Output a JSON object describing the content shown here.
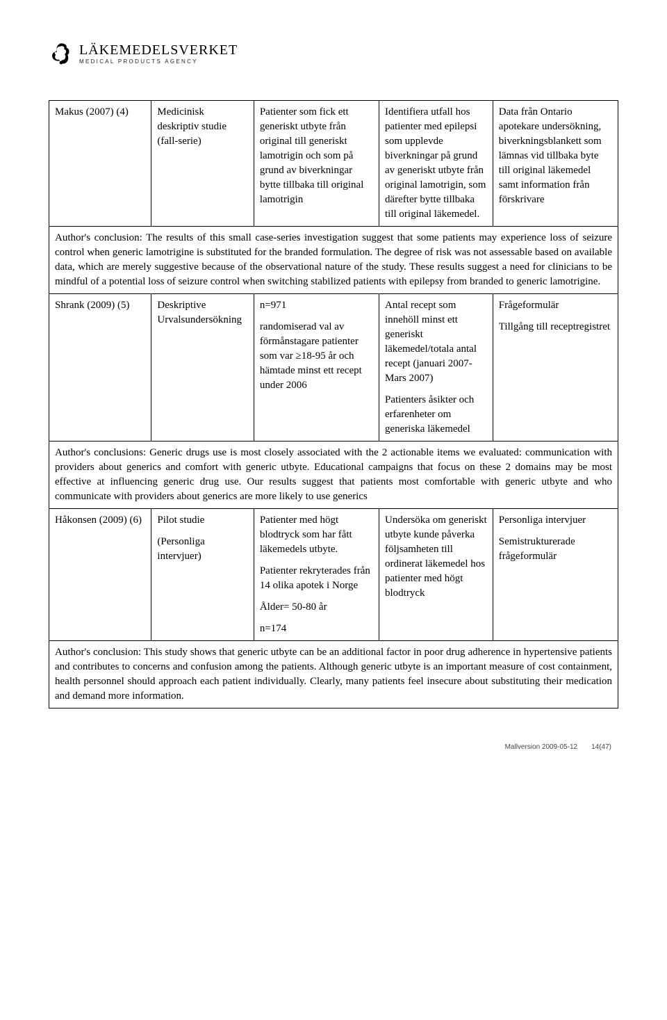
{
  "logo": {
    "main": "LÄKEMEDELSVERKET",
    "sub": "MEDICAL PRODUCTS AGENCY"
  },
  "colors": {
    "text": "#000000",
    "background": "#ffffff",
    "border": "#000000",
    "footer_text": "#444444"
  },
  "typography": {
    "body_font": "Times New Roman",
    "body_size_pt": 11,
    "logo_font": "Georgia",
    "footer_font": "Arial"
  },
  "table": {
    "column_widths_pct": [
      18,
      18,
      22,
      20,
      22
    ],
    "rows": [
      {
        "type": "data",
        "cells": [
          [
            "Makus (2007) (4)"
          ],
          [
            "Medicinisk deskriptiv studie (fall-serie)"
          ],
          [
            "Patienter som fick ett generiskt utbyte från original till generiskt lamotrigin och som på grund av biverkningar bytte tillbaka till original lamotrigin"
          ],
          [
            "Identifiera utfall hos patienter med epilepsi som upplevde biverkningar på grund av generiskt utbyte från original lamotrigin, som därefter bytte tillbaka till original läkemedel."
          ],
          [
            "Data från Ontario apotekare undersökning, biverkningsblankett som lämnas vid tillbaka byte till original läkemedel samt information från förskrivare"
          ]
        ]
      },
      {
        "type": "conclusion",
        "text": "Author's conclusion: The results of this small case-series investigation suggest that some patients may experience loss of seizure control when generic lamotrigine is substituted for the branded formulation. The degree of risk was not assessable based on available data, which are merely suggestive because of the observational nature of the study. These results suggest a need for clinicians to be mindful of a potential loss of seizure control when switching stabilized patients with epilepsy from branded to generic lamotrigine."
      },
      {
        "type": "data",
        "cells": [
          [
            "Shrank (2009) (5)"
          ],
          [
            "Deskriptive Urvalsundersökning"
          ],
          [
            "n=971",
            "randomiserad val av förmånstagare patienter som var ≥18-95 år och hämtade minst ett recept under 2006"
          ],
          [
            "Antal recept som innehöll minst ett generiskt läkemedel/totala antal recept (januari 2007- Mars 2007)",
            "Patienters åsikter och erfarenheter om generiska läkemedel"
          ],
          [
            "Frågeformulär",
            "Tillgång till receptregistret"
          ]
        ]
      },
      {
        "type": "conclusion",
        "text": "Author's conclusions: Generic drugs use is most closely associated with the 2 actionable items we evaluated: communication with providers about generics and comfort with generic utbyte. Educational campaigns that focus on these 2 domains may be most effective at influencing generic drug use. Our results suggest that patients most comfortable with generic utbyte and who communicate with providers about generics are more likely to use generics"
      },
      {
        "type": "data",
        "cells": [
          [
            "Håkonsen (2009) (6)"
          ],
          [
            " Pilot studie",
            "(Personliga intervjuer)"
          ],
          [
            "Patienter med högt blodtryck som har fått läkemedels utbyte.",
            "Patienter rekryterades från 14 olika apotek i Norge",
            "Ålder= 50-80 år",
            "n=174"
          ],
          [
            "Undersöka om generiskt utbyte kunde påverka följsamheten till ordinerat läkemedel hos patienter med högt blodtryck"
          ],
          [
            "Personliga intervjuer",
            "Semistrukturerade frågeformulär"
          ]
        ]
      },
      {
        "type": "conclusion",
        "text": "Author's conclusion: This study shows that generic utbyte can be an additional factor in poor drug adherence in hypertensive patients and contributes to concerns and confusion among the patients. Although generic utbyte is an important measure of cost containment, health personnel should approach each patient individually. Clearly, many patients feel insecure about substituting their medication and demand more information."
      }
    ]
  },
  "footer": {
    "mallversion": "Mallversion 2009-05-12",
    "page": "14(47)"
  }
}
